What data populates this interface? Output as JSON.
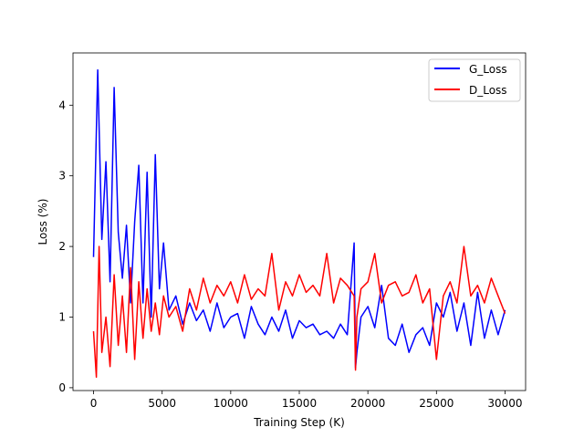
{
  "chart_data": {
    "type": "line",
    "xlabel": "Training Step (K)",
    "ylabel": "Loss (%)",
    "xlim": [
      -1500,
      31500
    ],
    "ylim": [
      -0.04,
      4.74
    ],
    "xticks": [
      0,
      5000,
      10000,
      15000,
      20000,
      25000,
      30000
    ],
    "xtick_labels": [
      "0",
      "5000",
      "10000",
      "15000",
      "20000",
      "25000",
      "30000"
    ],
    "yticks": [
      0,
      1,
      2,
      3,
      4
    ],
    "ytick_labels": [
      "0",
      "1",
      "2",
      "3",
      "4"
    ],
    "grid": false,
    "legend_position": "top-right",
    "series": [
      {
        "name": "G_Loss",
        "color": "#0000ff",
        "x": [
          0,
          300,
          600,
          900,
          1200,
          1500,
          1800,
          2100,
          2400,
          2700,
          3000,
          3300,
          3600,
          3900,
          4200,
          4500,
          4800,
          5100,
          5500,
          6000,
          6500,
          7000,
          7500,
          8000,
          8500,
          9000,
          9500,
          10000,
          10500,
          11000,
          11500,
          12000,
          12500,
          13000,
          13500,
          14000,
          14500,
          15000,
          15500,
          16000,
          16500,
          17000,
          17500,
          18000,
          18500,
          19000,
          19100,
          19200,
          19500,
          20000,
          20500,
          21000,
          21500,
          22000,
          22500,
          23000,
          23500,
          24000,
          24500,
          25000,
          25500,
          26000,
          26500,
          27000,
          27500,
          28000,
          28500,
          29000,
          29500,
          30000
        ],
        "values": [
          1.85,
          4.5,
          2.1,
          3.2,
          1.5,
          4.25,
          2.2,
          1.55,
          2.3,
          1.2,
          2.35,
          3.15,
          1.2,
          3.05,
          1.0,
          3.3,
          1.4,
          2.05,
          1.1,
          1.3,
          0.9,
          1.2,
          0.95,
          1.1,
          0.8,
          1.2,
          0.85,
          1.0,
          1.05,
          0.7,
          1.15,
          0.9,
          0.75,
          1.0,
          0.8,
          1.1,
          0.7,
          0.95,
          0.85,
          0.9,
          0.75,
          0.8,
          0.7,
          0.9,
          0.75,
          2.05,
          0.28,
          0.5,
          1.0,
          1.15,
          0.85,
          1.45,
          0.7,
          0.6,
          0.9,
          0.5,
          0.75,
          0.85,
          0.6,
          1.2,
          1.0,
          1.35,
          0.8,
          1.2,
          0.6,
          1.35,
          0.7,
          1.1,
          0.75,
          1.1
        ]
      },
      {
        "name": "D_Loss",
        "color": "#ff0000",
        "x": [
          0,
          200,
          400,
          600,
          900,
          1200,
          1500,
          1800,
          2100,
          2400,
          2700,
          3000,
          3300,
          3600,
          3900,
          4200,
          4500,
          4800,
          5100,
          5500,
          6000,
          6500,
          7000,
          7500,
          8000,
          8500,
          9000,
          9500,
          10000,
          10500,
          11000,
          11500,
          12000,
          12500,
          13000,
          13500,
          14000,
          14500,
          15000,
          15500,
          16000,
          16500,
          17000,
          17500,
          18000,
          18500,
          19000,
          19100,
          19200,
          19500,
          20000,
          20500,
          21000,
          21500,
          22000,
          22500,
          23000,
          23500,
          24000,
          24500,
          25000,
          25500,
          26000,
          26500,
          27000,
          27500,
          28000,
          28500,
          29000,
          29500,
          30000
        ],
        "values": [
          0.8,
          0.15,
          2.0,
          0.5,
          1.0,
          0.3,
          1.6,
          0.6,
          1.3,
          0.5,
          1.7,
          0.4,
          1.5,
          0.7,
          1.4,
          0.8,
          1.2,
          0.75,
          1.3,
          1.0,
          1.15,
          0.8,
          1.4,
          1.1,
          1.55,
          1.2,
          1.45,
          1.3,
          1.5,
          1.2,
          1.6,
          1.25,
          1.4,
          1.3,
          1.9,
          1.1,
          1.5,
          1.3,
          1.6,
          1.35,
          1.45,
          1.3,
          1.9,
          1.2,
          1.55,
          1.45,
          1.3,
          0.25,
          1.0,
          1.4,
          1.5,
          1.9,
          1.2,
          1.45,
          1.5,
          1.3,
          1.35,
          1.6,
          1.2,
          1.4,
          0.4,
          1.3,
          1.5,
          1.2,
          2.0,
          1.3,
          1.45,
          1.2,
          1.55,
          1.3,
          1.05
        ]
      }
    ]
  }
}
